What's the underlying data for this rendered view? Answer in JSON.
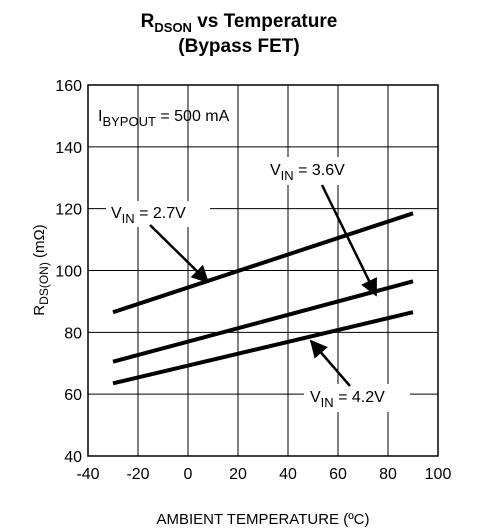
{
  "chart_data": {
    "type": "line",
    "title": {
      "line1_main": "R",
      "line1_sub": "DSON",
      "line1_rest": " vs Temperature",
      "line2": "(Bypass FET)"
    },
    "xlabel": "AMBIENT TEMPERATURE (ºC)",
    "ylabel": {
      "main": "R",
      "sub": "DS(ON)",
      "rest": " (mΩ)"
    },
    "xlim": [
      -40,
      100
    ],
    "ylim": [
      40,
      160
    ],
    "x_ticks": [
      -40,
      -20,
      0,
      20,
      40,
      60,
      80,
      100
    ],
    "y_ticks": [
      40,
      60,
      80,
      100,
      120,
      140,
      160
    ],
    "grid": true,
    "condition": {
      "main": "I",
      "sub": "BYPOUT",
      "rest": " = 500 mA"
    },
    "series": [
      {
        "name_main": "V",
        "name_sub": "IN",
        "name_rest": " = 2.7V",
        "x": [
          -30,
          90
        ],
        "y": [
          86.5,
          118.5
        ]
      },
      {
        "name_main": "V",
        "name_sub": "IN",
        "name_rest": " = 3.6V",
        "x": [
          -30,
          90
        ],
        "y": [
          70.5,
          96.5
        ]
      },
      {
        "name_main": "V",
        "name_sub": "IN",
        "name_rest": " = 4.2V",
        "x": [
          -30,
          90
        ],
        "y": [
          63.5,
          86.5
        ]
      }
    ]
  },
  "colors": {
    "line": "#000000",
    "grid": "#000000",
    "background": "#ffffff"
  }
}
